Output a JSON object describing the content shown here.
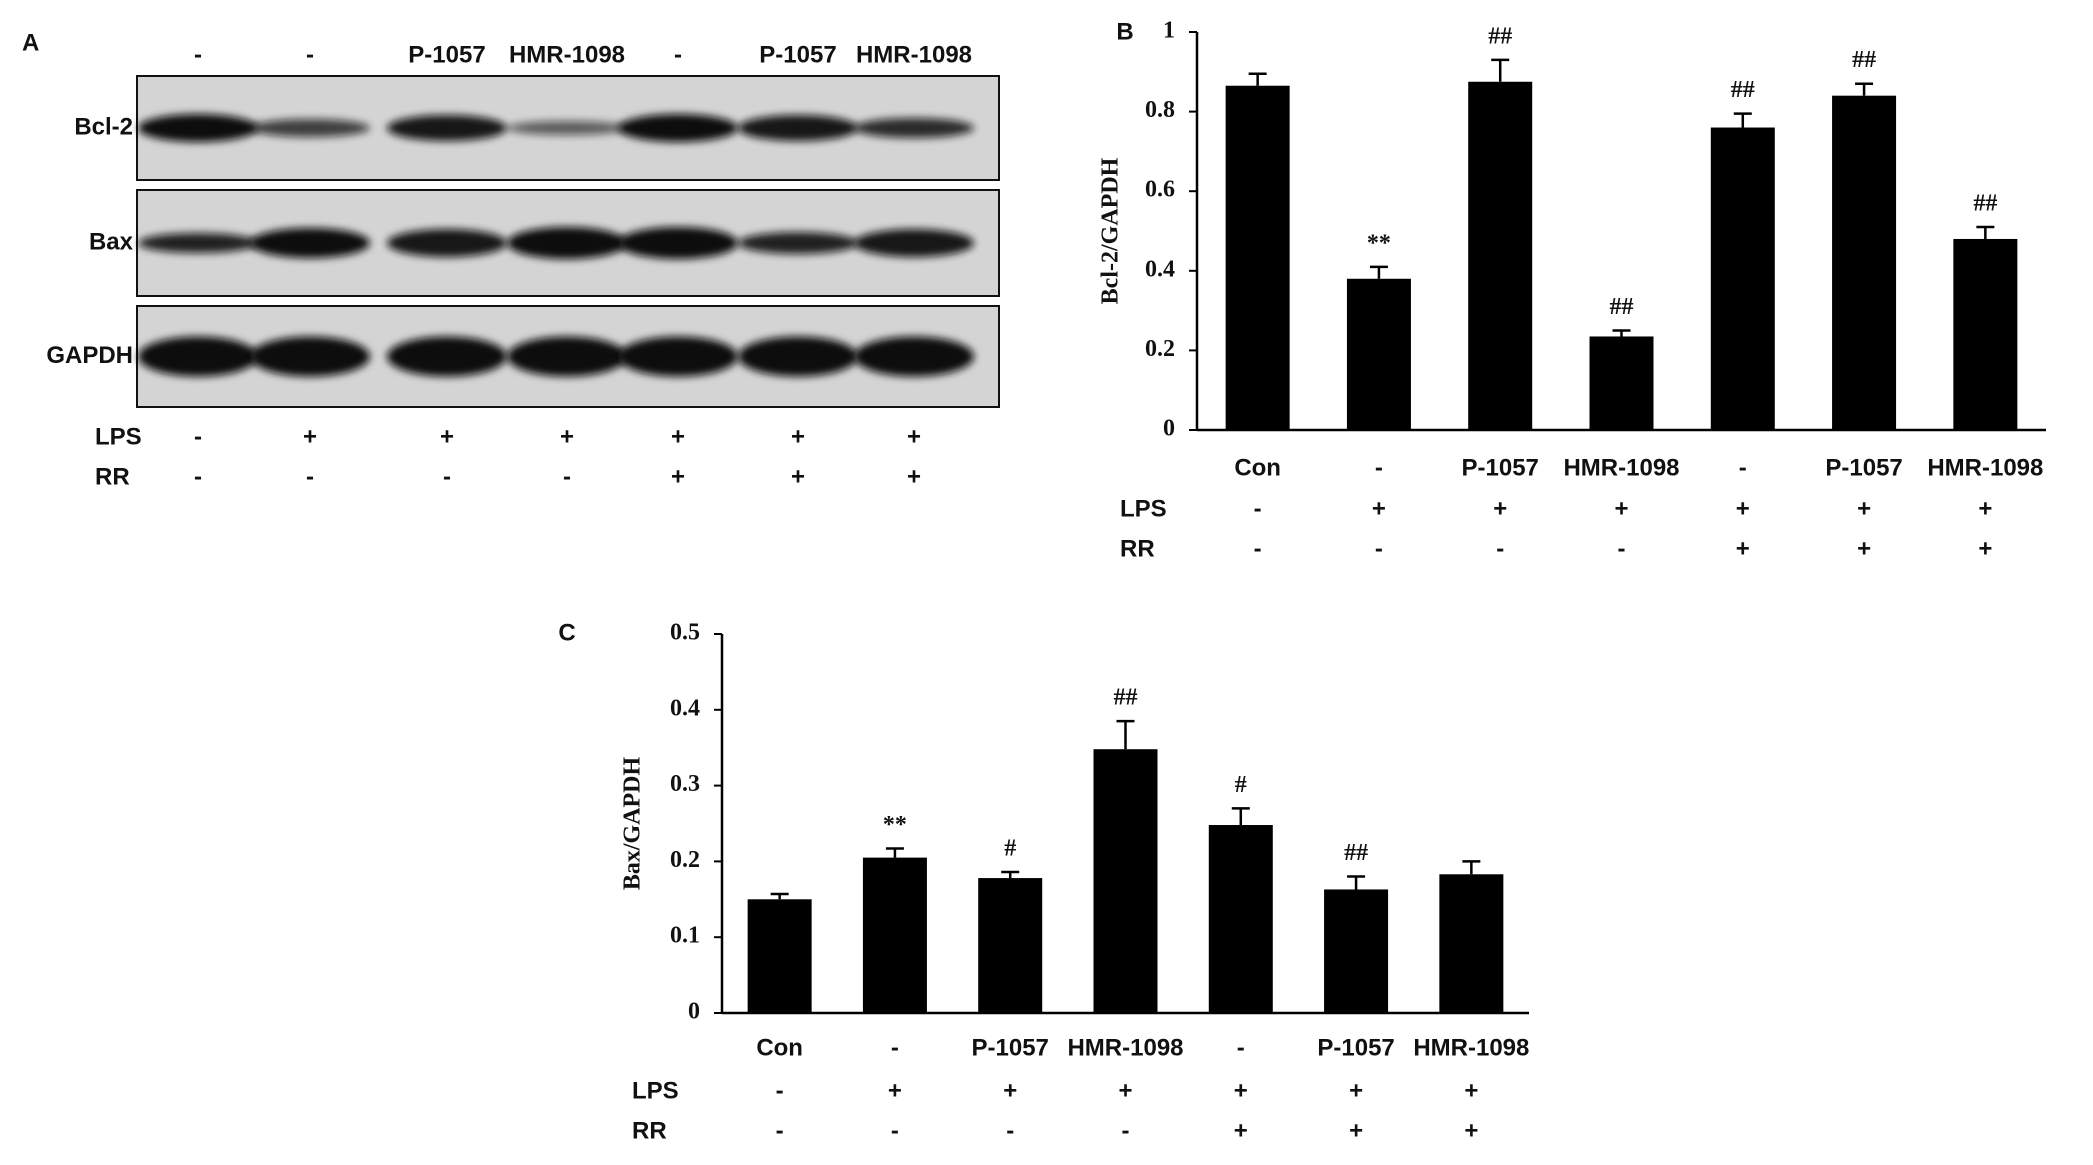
{
  "blot": {
    "panel_label": "A",
    "lanes": [
      "-",
      "-",
      "P-1057",
      "HMR-1098",
      "-",
      "P-1057",
      "HMR-1098"
    ],
    "proteins": [
      "Bcl-2",
      "Bax",
      "GAPDH"
    ],
    "rows": [
      {
        "name": "LPS",
        "values": [
          "-",
          "+",
          "+",
          "+",
          "+",
          "+",
          "+"
        ]
      },
      {
        "name": "RR",
        "values": [
          "-",
          "-",
          "-",
          "-",
          "+",
          "+",
          "+"
        ]
      }
    ]
  },
  "chart_data": [
    {
      "type": "bar",
      "panel_label": "B",
      "y_label": "Bcl-2/GAPDH",
      "color": "#000000",
      "categories": [
        "Con",
        "-",
        "P-1057",
        "HMR-1098",
        "-",
        "P-1057",
        "HMR-1098"
      ],
      "values": [
        0.865,
        0.38,
        0.875,
        0.235,
        0.76,
        0.84,
        0.48
      ],
      "errors": [
        0.03,
        0.03,
        0.055,
        0.015,
        0.035,
        0.03,
        0.03
      ],
      "annotations": [
        null,
        "**",
        "##",
        "##",
        "##",
        "##",
        "##"
      ],
      "ylim": [
        0,
        1
      ],
      "yticks": [
        0,
        0.2,
        0.4,
        0.6,
        0.8,
        1
      ],
      "rows": [
        {
          "name": "LPS",
          "values": [
            "-",
            "+",
            "+",
            "+",
            "+",
            "+",
            "+"
          ]
        },
        {
          "name": "RR",
          "values": [
            "-",
            "-",
            "-",
            "-",
            "+",
            "+",
            "+"
          ]
        }
      ]
    },
    {
      "type": "bar",
      "panel_label": "C",
      "y_label": "Bax/GAPDH",
      "color": "#000000",
      "categories": [
        "Con",
        "-",
        "P-1057",
        "HMR-1098",
        "-",
        "P-1057",
        "HMR-1098"
      ],
      "values": [
        0.15,
        0.205,
        0.178,
        0.348,
        0.248,
        0.163,
        0.183
      ],
      "errors": [
        0.007,
        0.012,
        0.008,
        0.037,
        0.022,
        0.017,
        0.017
      ],
      "annotations": [
        null,
        "**",
        "#",
        "##",
        "#",
        "##",
        null
      ],
      "ylim": [
        0,
        0.5
      ],
      "yticks": [
        0,
        0.1,
        0.2,
        0.3,
        0.4,
        0.5
      ],
      "rows": [
        {
          "name": "LPS",
          "values": [
            "-",
            "+",
            "+",
            "+",
            "+",
            "+",
            "+"
          ]
        },
        {
          "name": "RR",
          "values": [
            "-",
            "-",
            "-",
            "-",
            "+",
            "+",
            "+"
          ]
        }
      ]
    }
  ]
}
